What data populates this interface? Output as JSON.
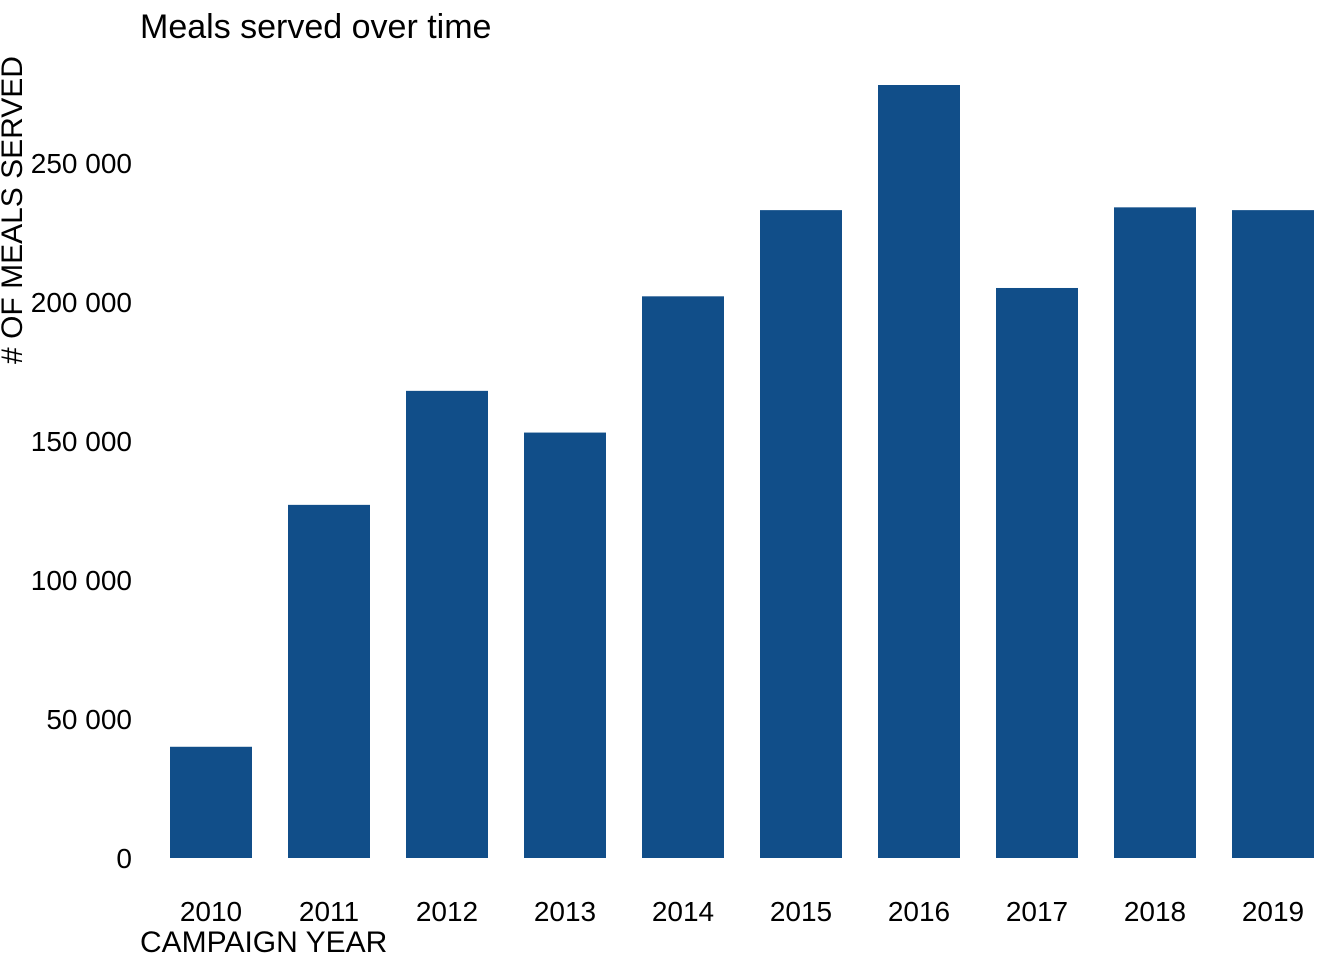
{
  "chart_data": {
    "type": "bar",
    "title": "Meals served over time",
    "xlabel": "CAMPAIGN YEAR",
    "ylabel": "# OF MEALS SERVED",
    "categories": [
      "2010",
      "2011",
      "2012",
      "2013",
      "2014",
      "2015",
      "2016",
      "2017",
      "2018",
      "2019"
    ],
    "values": [
      40000,
      127000,
      168000,
      153000,
      202000,
      233000,
      278000,
      205000,
      234000,
      233000
    ],
    "ylim": [
      0,
      278000
    ],
    "yticks": [
      0,
      50000,
      100000,
      150000,
      200000,
      250000
    ],
    "ytick_labels": [
      "0",
      "50 000",
      "100 000",
      "150 000",
      "200 000",
      "250 000"
    ],
    "bar_color": "#114e89",
    "grid": false,
    "legend": "none"
  }
}
